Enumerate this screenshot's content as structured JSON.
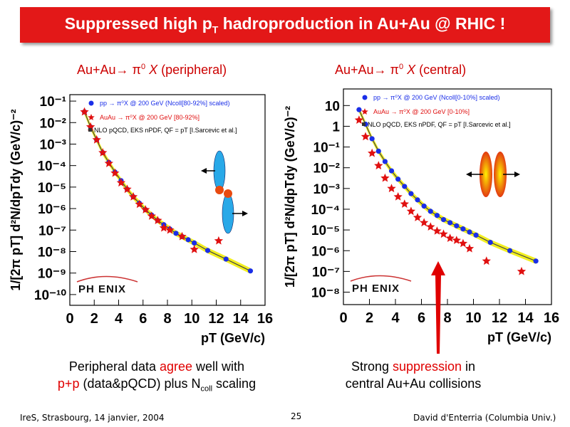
{
  "banner": {
    "title_a": "Suppressed high p",
    "title_sub": "T",
    "title_b": " hadroproduction in Au+Au @ RHIC !"
  },
  "panels": [
    {
      "title_a": "Au+Au",
      "arrow": "→",
      "title_b": " π",
      "title_sup": "0",
      "title_c": " X",
      "title_d": " (peripheral)"
    },
    {
      "title_a": "Au+Au",
      "arrow": "→",
      "title_b": " π",
      "title_sup": "0",
      "title_c": " X",
      "title_d": " (central)"
    }
  ],
  "captions": {
    "left_1a": "Peripheral data ",
    "left_1b": "agree",
    "left_1c": " well with",
    "left_2a": "p+p",
    "left_2b": " (data&pQCD) plus N",
    "left_2sub": "coll",
    "left_2c": " scaling",
    "right_1a": "Strong ",
    "right_1b": "suppression",
    "right_1c": " in",
    "right_2": "central Au+Au collisions"
  },
  "footer": {
    "left": "IreS, Strasbourg, 14 janvier, 2004",
    "center": "25",
    "right": "David d'Enterria (Columbia Univ.)"
  },
  "colors": {
    "banner": "#e31818",
    "accent": "#e00000",
    "pp": "#1a2ee8",
    "auau": "#e01010",
    "band": "#f2ef20"
  },
  "chart_data": [
    {
      "type": "scatter",
      "ylog": true,
      "xlim": [
        0,
        16
      ],
      "ylim_exp": [
        -10.5,
        -0.7
      ],
      "xticks": [
        "0",
        "2",
        "4",
        "6",
        "8",
        "10",
        "12",
        "14",
        "16"
      ],
      "yticks": [
        "10⁻¹",
        "10⁻²",
        "10⁻³",
        "10⁻⁴",
        "10⁻⁵",
        "10⁻⁶",
        "10⁻⁷",
        "10⁻⁸",
        "10⁻⁹",
        "10⁻¹⁰"
      ],
      "ytick_exps": [
        -1,
        -2,
        -3,
        -4,
        -5,
        -6,
        -7,
        -8,
        -9,
        -10
      ],
      "xlabel": "pT (GeV/c)",
      "ylabel": "1/[2π pT] d²N/dpTdy (GeV/c)⁻²",
      "legend": [
        "pp → π⁰X @ 200 GeV (Ncoll[80-92%] scaled)",
        "AuAu → π⁰X @ 200 GeV [80-92%]",
        "NLO pQCD, EKS nPDF, QF = pT [I.Sarcevic et al.]"
      ],
      "logo": "PH ENIX",
      "series": [
        {
          "name": "pp",
          "x": [
            1.2,
            1.7,
            2.2,
            2.7,
            3.2,
            3.7,
            4.2,
            4.7,
            5.2,
            5.7,
            6.2,
            6.7,
            7.2,
            7.7,
            8.2,
            8.7,
            9.2,
            9.7,
            10.2,
            11.3,
            12.8,
            14.8
          ],
          "y": [
            -1.5,
            -2.2,
            -2.8,
            -3.4,
            -3.85,
            -4.3,
            -4.7,
            -5.1,
            -5.45,
            -5.75,
            -6.05,
            -6.3,
            -6.55,
            -6.75,
            -6.95,
            -7.15,
            -7.3,
            -7.45,
            -7.6,
            -7.95,
            -8.35,
            -8.9
          ]
        },
        {
          "name": "AuAu",
          "x": [
            1.2,
            1.7,
            2.2,
            2.7,
            3.2,
            3.7,
            4.2,
            4.7,
            5.2,
            5.7,
            6.2,
            6.7,
            7.2,
            7.7,
            8.2,
            9.2,
            10.2,
            12.2
          ],
          "y": [
            -1.5,
            -2.2,
            -2.8,
            -3.4,
            -3.9,
            -4.35,
            -4.8,
            -5.1,
            -5.45,
            -5.8,
            -6.05,
            -6.35,
            -6.55,
            -6.9,
            -7.0,
            -7.3,
            -7.9,
            -7.5
          ]
        }
      ]
    },
    {
      "type": "scatter",
      "ylog": true,
      "xlim": [
        0,
        16
      ],
      "ylim_exp": [
        -8.6,
        1.8
      ],
      "xticks": [
        "0",
        "2",
        "4",
        "6",
        "8",
        "10",
        "12",
        "14",
        "16"
      ],
      "yticks": [
        "10",
        "1",
        "10⁻¹",
        "10⁻²",
        "10⁻³",
        "10⁻⁴",
        "10⁻⁵",
        "10⁻⁶",
        "10⁻⁷",
        "10⁻⁸"
      ],
      "ytick_exps": [
        1,
        0,
        -1,
        -2,
        -3,
        -4,
        -5,
        -6,
        -7,
        -8
      ],
      "xlabel": "pT (GeV/c)",
      "ylabel": "1/[2π pT] d²N/dpTdy (GeV/c)⁻²",
      "legend": [
        "pp → π⁰X @ 200 GeV (Ncoll[0-10%] scaled)",
        "AuAu → π⁰X @ 200 GeV [0-10%]",
        "NLO pQCD, EKS nPDF, QF = pT [I.Sarcevic et al.]"
      ],
      "logo": "PH ENIX",
      "series": [
        {
          "name": "pp",
          "x": [
            1.2,
            1.7,
            2.2,
            2.7,
            3.2,
            3.7,
            4.2,
            4.7,
            5.2,
            5.7,
            6.2,
            6.7,
            7.2,
            7.7,
            8.2,
            8.7,
            9.2,
            9.7,
            10.2,
            11.3,
            12.8,
            14.8
          ],
          "y": [
            0.8,
            0.1,
            -0.6,
            -1.2,
            -1.7,
            -2.15,
            -2.55,
            -2.9,
            -3.25,
            -3.55,
            -3.85,
            -4.1,
            -4.3,
            -4.5,
            -4.65,
            -4.8,
            -4.95,
            -5.1,
            -5.25,
            -5.6,
            -6.0,
            -6.5
          ]
        },
        {
          "name": "AuAu",
          "x": [
            1.2,
            1.7,
            2.2,
            2.7,
            3.2,
            3.7,
            4.2,
            4.7,
            5.2,
            5.7,
            6.2,
            6.7,
            7.2,
            7.7,
            8.2,
            8.7,
            9.2,
            9.7,
            11.0,
            13.7
          ],
          "y": [
            0.3,
            -0.5,
            -1.3,
            -1.9,
            -2.5,
            -3.0,
            -3.4,
            -3.75,
            -4.1,
            -4.4,
            -4.65,
            -4.85,
            -5.05,
            -5.2,
            -5.4,
            -5.5,
            -5.65,
            -5.9,
            -6.5,
            -7.0
          ]
        }
      ]
    }
  ]
}
